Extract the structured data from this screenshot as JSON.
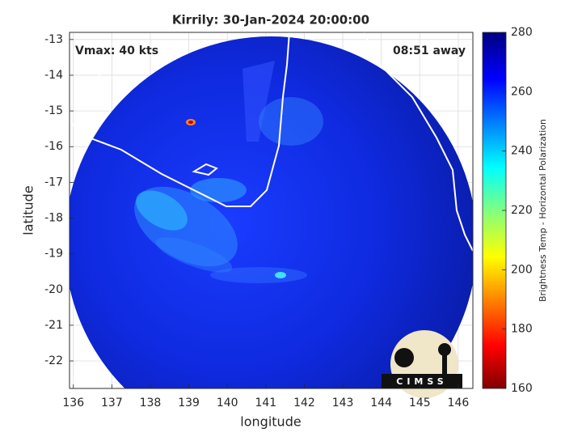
{
  "chart_data": {
    "type": "image",
    "title": "Kirrily: 30-Jan-2024 20:00:00",
    "annotations": [
      "Vmax: 40 kts",
      "08:51 away"
    ],
    "xlabel": "longitude",
    "ylabel": "latitude",
    "xlim": [
      135.9,
      146.38
    ],
    "xticks": [
      136,
      137,
      138,
      139,
      140,
      141,
      142,
      143,
      144,
      145,
      146
    ],
    "ylim": [
      -22.77,
      -12.8
    ],
    "yticks": [
      -22,
      -21,
      -20,
      -19,
      -18,
      -17,
      -16,
      -15,
      -14,
      -13
    ],
    "grid": true,
    "colorbar": {
      "label": "Brightness Temp - Horizontal Polarization",
      "lim": [
        160,
        280
      ],
      "ticks": [
        160,
        180,
        200,
        220,
        240,
        260,
        280
      ]
    },
    "logo": "CIMSS"
  }
}
